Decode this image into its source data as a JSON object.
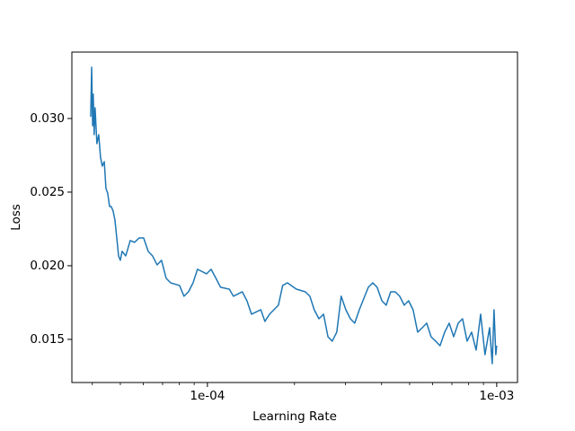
{
  "chart_data": {
    "type": "line",
    "xlabel": "Learning Rate",
    "ylabel": "Loss",
    "xscale": "log",
    "grid": false,
    "xlim": [
      3.4e-05,
      0.00118
    ],
    "ylim": [
      0.01207,
      0.03451
    ],
    "xticks": [
      {
        "value": 0.0001,
        "label": "1e-04"
      },
      {
        "value": 0.001,
        "label": "1e-03"
      }
    ],
    "xminorticks": [
      4e-05,
      5e-05,
      6e-05,
      7e-05,
      8e-05,
      9e-05,
      0.0002,
      0.0003,
      0.0004,
      0.0005,
      0.0006,
      0.0007,
      0.0008,
      0.0009
    ],
    "yticks": [
      0.015,
      {
        "value": 0.02,
        "label": "0.020"
      },
      0.025,
      {
        "value": 0.03,
        "label": "0.030"
      }
    ],
    "x": [
      3.95e-05,
      3.98e-05,
      4.01e-05,
      4.03e-05,
      4.06e-05,
      4.09e-05,
      4.15e-05,
      4.21e-05,
      4.27e-05,
      4.33e-05,
      4.4e-05,
      4.46e-05,
      4.52e-05,
      4.59e-05,
      4.65e-05,
      4.72e-05,
      4.79e-05,
      4.86e-05,
      4.93e-05,
      5e-05,
      5.07e-05,
      5.22e-05,
      5.41e-05,
      5.6e-05,
      5.81e-05,
      6.02e-05,
      6.24e-05,
      6.46e-05,
      6.7e-05,
      6.94e-05,
      7.2e-05,
      7.46e-05,
      8.01e-05,
      8.3e-05,
      8.6e-05,
      8.92e-05,
      9.24e-05,
      9.93e-05,
      0.000103,
      0.000107,
      0.000111,
      0.000119,
      0.000123,
      0.000132,
      0.000137,
      0.000142,
      0.000153,
      0.000158,
      0.000164,
      0.000176,
      0.000182,
      0.000189,
      0.000203,
      0.000218,
      0.000226,
      0.000234,
      0.000243,
      0.000252,
      0.000261,
      0.00027,
      0.00028,
      0.00029,
      0.000301,
      0.000312,
      0.000323,
      0.000335,
      0.00036,
      0.000373,
      0.000386,
      0.000401,
      0.000415,
      0.00043,
      0.000446,
      0.000462,
      0.000479,
      0.000496,
      0.000514,
      0.000533,
      0.000553,
      0.000573,
      0.000593,
      0.000615,
      0.000637,
      0.000661,
      0.000685,
      0.00071,
      0.000736,
      0.000762,
      0.00079,
      0.000819,
      0.000849,
      0.00088,
      0.000911,
      0.000945,
      0.000965,
      0.000979,
      0.000993,
      0.001
    ],
    "series": [
      {
        "name": "loss",
        "color": "#1f77b4",
        "values": [
          0.03012,
          0.03348,
          0.02951,
          0.03165,
          0.0289,
          0.03073,
          0.02829,
          0.0289,
          0.02738,
          0.02677,
          0.02707,
          0.02524,
          0.02494,
          0.02402,
          0.02402,
          0.02372,
          0.02311,
          0.02189,
          0.02067,
          0.02037,
          0.02098,
          0.02067,
          0.02171,
          0.02159,
          0.02189,
          0.02189,
          0.02098,
          0.02067,
          0.02006,
          0.02037,
          0.01915,
          0.01884,
          0.01866,
          0.01793,
          0.01823,
          0.01884,
          0.01976,
          0.01945,
          0.01976,
          0.01915,
          0.01854,
          0.01841,
          0.01793,
          0.01823,
          0.01762,
          0.01671,
          0.01701,
          0.01622,
          0.01671,
          0.01732,
          0.01866,
          0.01884,
          0.01841,
          0.01823,
          0.01793,
          0.01701,
          0.0164,
          0.01671,
          0.01518,
          0.01488,
          0.01549,
          0.01793,
          0.01701,
          0.0164,
          0.0161,
          0.01701,
          0.01854,
          0.01884,
          0.01854,
          0.01762,
          0.01732,
          0.01823,
          0.01823,
          0.01793,
          0.01732,
          0.01762,
          0.01701,
          0.01549,
          0.01579,
          0.0161,
          0.01518,
          0.01488,
          0.01457,
          0.01549,
          0.0161,
          0.01518,
          0.0161,
          0.0164,
          0.01488,
          0.01549,
          0.01427,
          0.01671,
          0.01396,
          0.01579,
          0.01335,
          0.01701,
          0.01396,
          0.01457
        ]
      }
    ]
  }
}
